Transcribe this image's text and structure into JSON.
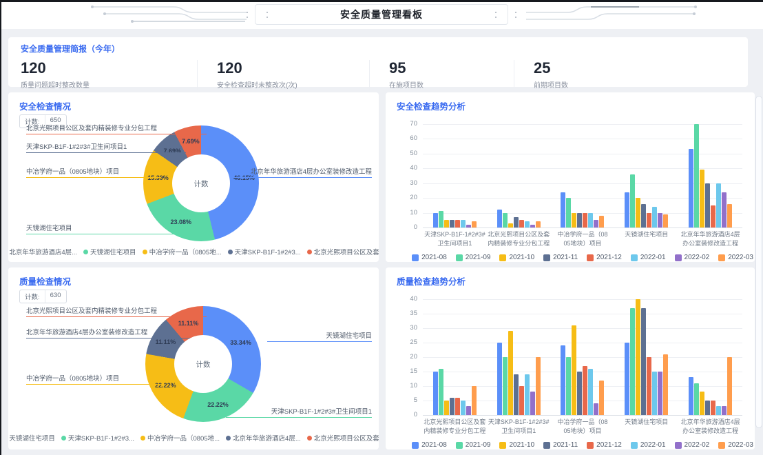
{
  "header": {
    "title": "安全质量管理看板"
  },
  "summary": {
    "title": "安全质量管理简报（今年）",
    "kpis": [
      {
        "value": "120",
        "label": "质量问题超时整改数量"
      },
      {
        "value": "120",
        "label": "安全检查超时未整改次(次)"
      },
      {
        "value": "95",
        "label": "在施项目数"
      },
      {
        "value": "25",
        "label": "前期项目数"
      }
    ]
  },
  "colors": {
    "accent": "#3a6bf0",
    "series": [
      "#5B8FF9",
      "#5AD8A6",
      "#F6BD16",
      "#5D7092",
      "#E8684A",
      "#6DC8EC",
      "#9270CA",
      "#FF9D4D"
    ]
  },
  "chart_data": [
    {
      "type": "pie",
      "title": "安全检查情况",
      "badge_label": "计数:",
      "badge_value": "650",
      "center_label": "计数",
      "legend_position": "bottom",
      "slices": [
        {
          "name": "北京年华旅游酒店4层办公室装修改造工程",
          "pct": 46.15,
          "label": "46.15%",
          "color": "#5B8FF9"
        },
        {
          "name": "天镜湖住宅项目",
          "pct": 23.08,
          "label": "23.08%",
          "color": "#5AD8A6"
        },
        {
          "name": "中冶学府一品（0805地块）项目",
          "pct": 15.39,
          "label": "15.39%",
          "color": "#F6BD16"
        },
        {
          "name": "天津SKP-B1F-1#2#3#卫生间项目1",
          "pct": 7.69,
          "label": "7.69%",
          "color": "#5D7092"
        },
        {
          "name": "北京光熙项目公区及套内精装修专业分包工程",
          "pct": 7.69,
          "label": "7.69%",
          "color": "#E8684A"
        }
      ],
      "legend": [
        "北京年华旅游酒店4层...",
        "天镜湖住宅项目",
        "中冶学府一品（0805地...",
        "天津SKP-B1F-1#2#3...",
        "北京光熙项目公区及套..."
      ]
    },
    {
      "type": "bar",
      "title": "安全检查趋势分析",
      "ylim": [
        0,
        70
      ],
      "ytick_step": 10,
      "grid": true,
      "legend_position": "bottom",
      "categories": [
        "天津SKP-B1F-1#2#3#\n卫生间项目1",
        "北京光熙项目公区及套\n内精装修专业分包工程",
        "中冶学府一品（08\n05地块）项目",
        "天镜湖住宅项目",
        "北京年华旅游酒店4层\n办公室装修改造工程"
      ],
      "series": [
        {
          "name": "2021-08",
          "color": "#5B8FF9",
          "values": [
            10,
            12,
            24,
            24,
            53
          ]
        },
        {
          "name": "2021-09",
          "color": "#5AD8A6",
          "values": [
            11,
            10,
            20,
            36,
            70
          ]
        },
        {
          "name": "2021-10",
          "color": "#F6BD16",
          "values": [
            5,
            3,
            10,
            20,
            39
          ]
        },
        {
          "name": "2021-11",
          "color": "#5D7092",
          "values": [
            5,
            7,
            10,
            16,
            30
          ]
        },
        {
          "name": "2021-12",
          "color": "#E8684A",
          "values": [
            5,
            5,
            10,
            10,
            15
          ]
        },
        {
          "name": "2022-01",
          "color": "#6DC8EC",
          "values": [
            5,
            4,
            10,
            14,
            30
          ]
        },
        {
          "name": "2022-02",
          "color": "#9270CA",
          "values": [
            2,
            2,
            5,
            10,
            24
          ]
        },
        {
          "name": "2022-03",
          "color": "#FF9D4D",
          "values": [
            4,
            4,
            8,
            9,
            16
          ]
        }
      ]
    },
    {
      "type": "pie",
      "title": "质量检查情况",
      "badge_label": "计数:",
      "badge_value": "630",
      "center_label": "计数",
      "legend_position": "bottom",
      "slices": [
        {
          "name": "天镜湖住宅项目",
          "pct": 33.34,
          "label": "33.34%",
          "color": "#5B8FF9"
        },
        {
          "name": "天津SKP-B1F-1#2#3#卫生间项目1",
          "pct": 22.22,
          "label": "22.22%",
          "color": "#5AD8A6"
        },
        {
          "name": "中冶学府一品（0805地块）项目",
          "pct": 22.22,
          "label": "22.22%",
          "color": "#F6BD16"
        },
        {
          "name": "北京年华旅游酒店4层办公室装修改造工程",
          "pct": 11.11,
          "label": "11.11%",
          "color": "#5D7092"
        },
        {
          "name": "北京光熙项目公区及套内精装修专业分包工程",
          "pct": 11.11,
          "label": "11.11%",
          "color": "#E8684A"
        }
      ],
      "legend": [
        "天镜湖住宅项目",
        "天津SKP-B1F-1#2#3...",
        "中冶学府一品（0805地...",
        "北京年华旅游酒店4层...",
        "北京光熙项目公区及套..."
      ]
    },
    {
      "type": "bar",
      "title": "质量检查趋势分析",
      "ylim": [
        0,
        40
      ],
      "ytick_step": 5,
      "grid": true,
      "legend_position": "bottom",
      "categories": [
        "北京光熙项目公区及套\n内精装修专业分包工程",
        "天津SKP-B1F-1#2#3#\n卫生间项目1",
        "中冶学府一品（08\n05地块）项目",
        "天镜湖住宅项目",
        "北京年华旅游酒店4层\n办公室装修改造工程"
      ],
      "series": [
        {
          "name": "2021-08",
          "color": "#5B8FF9",
          "values": [
            15,
            25,
            24,
            25,
            13
          ]
        },
        {
          "name": "2021-09",
          "color": "#5AD8A6",
          "values": [
            16,
            20,
            20,
            37,
            11
          ]
        },
        {
          "name": "2021-10",
          "color": "#F6BD16",
          "values": [
            5,
            29,
            31,
            40,
            8
          ]
        },
        {
          "name": "2021-11",
          "color": "#5D7092",
          "values": [
            6,
            14,
            15,
            37,
            5
          ]
        },
        {
          "name": "2021-12",
          "color": "#E8684A",
          "values": [
            6,
            10,
            17,
            20,
            5
          ]
        },
        {
          "name": "2022-01",
          "color": "#6DC8EC",
          "values": [
            5,
            14,
            16,
            15,
            3
          ]
        },
        {
          "name": "2022-02",
          "color": "#9270CA",
          "values": [
            3,
            8,
            4,
            15,
            3
          ]
        },
        {
          "name": "2022-03",
          "color": "#FF9D4D",
          "values": [
            10,
            20,
            12,
            21,
            20
          ]
        }
      ]
    }
  ]
}
